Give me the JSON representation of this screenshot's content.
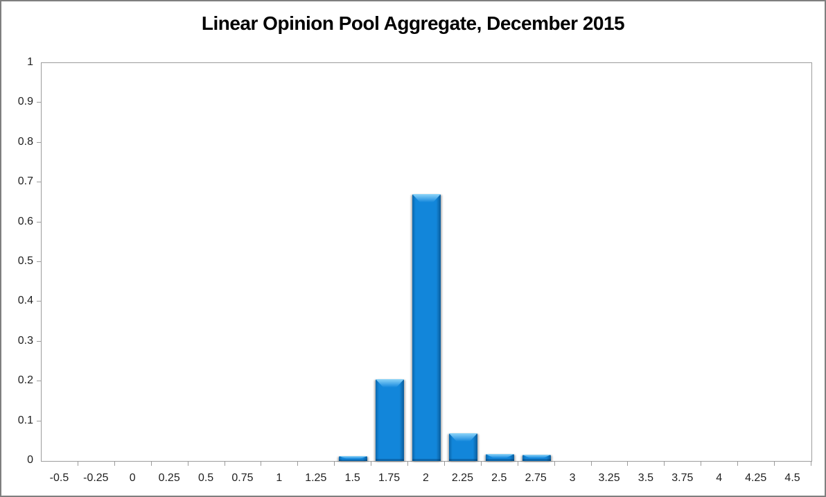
{
  "frame": {
    "background": "#ffffff",
    "border_color": "#7f7f7f"
  },
  "chart_data": {
    "type": "bar",
    "title": "Linear Opinion Pool Aggregate, December 2015",
    "categories": [
      "-0.5",
      "-0.25",
      "0",
      "0.25",
      "0.5",
      "0.75",
      "1",
      "1.25",
      "1.5",
      "1.75",
      "2",
      "2.25",
      "2.5",
      "2.75",
      "3",
      "3.25",
      "3.5",
      "3.75",
      "4",
      "4.25",
      "4.5"
    ],
    "values": [
      0,
      0,
      0,
      0,
      0,
      0,
      0,
      0,
      0.013,
      0.205,
      0.67,
      0.07,
      0.018,
      0.015,
      0,
      0,
      0,
      0,
      0,
      0,
      0
    ],
    "xlabel": "",
    "ylabel": "",
    "ylim": [
      0,
      1
    ],
    "y_tick_labels": [
      "0",
      "0.1",
      "0.2",
      "0.3",
      "0.4",
      "0.5",
      "0.6",
      "0.7",
      "0.8",
      "0.9",
      "1"
    ],
    "grid": false,
    "legend": "none",
    "bar_color": "#1286da",
    "bar_bevel_highlight": "#8ed5f8",
    "axis_color": "#9b9b9b",
    "label_color": "#1f1f1f",
    "title_color": "#000000"
  }
}
